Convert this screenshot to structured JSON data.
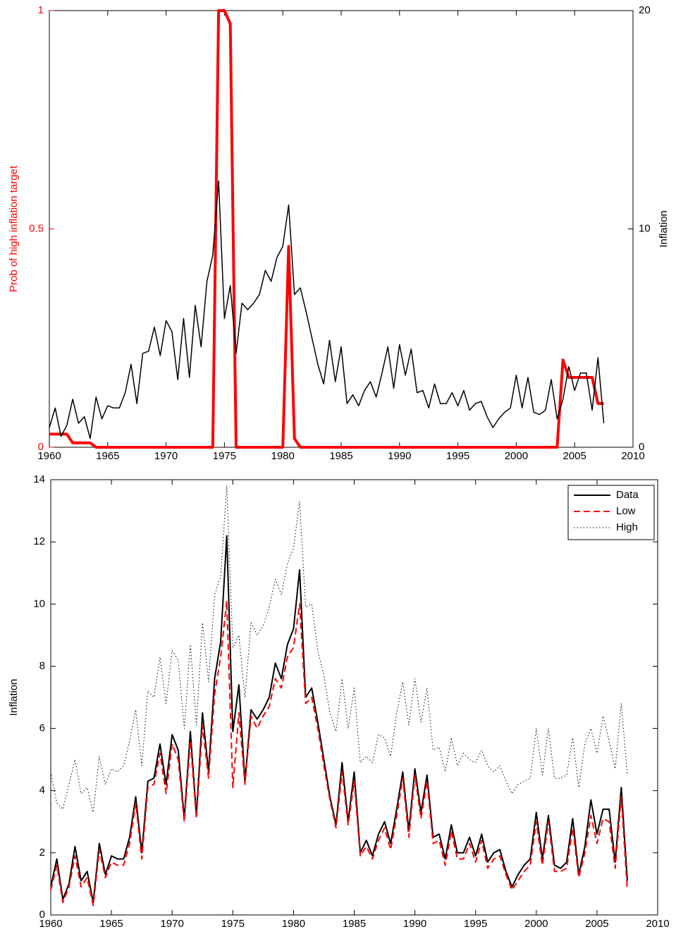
{
  "chart_data": [
    {
      "type": "line",
      "ylabel": "Prob of high inflation target",
      "ylabel_color": "#ff0000",
      "y2label": "Inflation",
      "x": [
        1960,
        1960.5,
        1961,
        1961.5,
        1962,
        1962.5,
        1963,
        1963.5,
        1964,
        1964.5,
        1965,
        1965.5,
        1966,
        1966.5,
        1967,
        1967.5,
        1968,
        1968.5,
        1969,
        1969.5,
        1970,
        1970.5,
        1971,
        1971.5,
        1972,
        1972.5,
        1973,
        1973.5,
        1974,
        1974.5,
        1975,
        1975.5,
        1976,
        1976.5,
        1977,
        1977.5,
        1978,
        1978.5,
        1979,
        1979.5,
        1980,
        1980.5,
        1981,
        1981.5,
        1982,
        1982.5,
        1983,
        1983.5,
        1984,
        1984.5,
        1985,
        1985.5,
        1986,
        1986.5,
        1987,
        1987.5,
        1988,
        1988.5,
        1989,
        1989.5,
        1990,
        1990.5,
        1991,
        1991.5,
        1992,
        1992.5,
        1993,
        1993.5,
        1994,
        1994.5,
        1995,
        1995.5,
        1996,
        1996.5,
        1997,
        1997.5,
        1998,
        1998.5,
        1999,
        1999.5,
        2000,
        2000.5,
        2001,
        2001.5,
        2002,
        2002.5,
        2003,
        2003.5,
        2004,
        2004.5,
        2005,
        2005.5,
        2006,
        2006.5,
        2007,
        2007.5
      ],
      "series": [
        {
          "color": "#ff0000",
          "line_width": 4,
          "line_style": "solid",
          "axis": "y",
          "values": [
            0.03,
            0.03,
            0.03,
            0.03,
            0.01,
            0.01,
            0.01,
            0.01,
            0,
            0,
            0,
            0,
            0,
            0,
            0,
            0,
            0,
            0,
            0,
            0,
            0,
            0,
            0,
            0,
            0,
            0,
            0,
            0,
            0,
            1,
            1,
            0.97,
            0,
            0,
            0,
            0,
            0,
            0,
            0,
            0,
            0,
            0.46,
            0.02,
            0,
            0,
            0,
            0,
            0,
            0,
            0,
            0,
            0,
            0,
            0,
            0,
            0,
            0,
            0,
            0,
            0,
            0,
            0,
            0,
            0,
            0,
            0,
            0,
            0,
            0,
            0,
            0,
            0,
            0,
            0,
            0,
            0,
            0,
            0,
            0,
            0,
            0,
            0,
            0,
            0,
            0,
            0,
            0,
            0,
            0.2,
            0.16,
            0.16,
            0.16,
            0.16,
            0.16,
            0.1,
            0.1
          ]
        },
        {
          "color": "#000000",
          "line_width": 1.5,
          "line_style": "solid",
          "axis": "y2",
          "values": [
            0.9,
            1.8,
            0.5,
            1.0,
            2.2,
            1.1,
            1.4,
            0.4,
            2.3,
            1.3,
            1.9,
            1.8,
            1.8,
            2.5,
            3.8,
            2.0,
            4.3,
            4.4,
            5.5,
            4.2,
            5.8,
            5.3,
            3.1,
            5.9,
            3.2,
            6.5,
            4.6,
            7.6,
            8.8,
            12.2,
            5.9,
            7.4,
            4.3,
            6.6,
            6.3,
            6.6,
            7.0,
            8.1,
            7.6,
            8.7,
            9.2,
            11.1,
            7.0,
            7.3,
            6.2,
            5.0,
            3.8,
            2.9,
            4.9,
            3.0,
            4.6,
            2.0,
            2.4,
            1.9,
            2.6,
            3.0,
            2.3,
            3.4,
            4.6,
            2.7,
            4.7,
            3.3,
            4.5,
            2.5,
            2.6,
            1.8,
            2.9,
            2.0,
            2.0,
            2.5,
            1.9,
            2.6,
            1.7,
            2.0,
            2.1,
            1.4,
            0.9,
            1.3,
            1.6,
            1.8,
            3.3,
            1.8,
            3.2,
            1.6,
            1.5,
            1.7,
            3.1,
            1.3,
            2.2,
            3.7,
            2.6,
            3.4,
            3.4,
            1.7,
            4.1,
            1.1
          ]
        }
      ],
      "xlim": [
        1960,
        2010
      ],
      "xticks": [
        1960,
        1965,
        1970,
        1975,
        1980,
        1985,
        1990,
        1995,
        2000,
        2005,
        2010
      ],
      "ylim": [
        0,
        1
      ],
      "yticks": [
        0,
        0.5,
        1
      ],
      "ytick_color": "#ff0000",
      "y2lim": [
        0,
        20
      ],
      "y2ticks": [
        0,
        10,
        20
      ]
    },
    {
      "type": "line",
      "ylabel": "Inflation",
      "legend": "upper right",
      "x": [
        1960,
        1960.5,
        1961,
        1961.5,
        1962,
        1962.5,
        1963,
        1963.5,
        1964,
        1964.5,
        1965,
        1965.5,
        1966,
        1966.5,
        1967,
        1967.5,
        1968,
        1968.5,
        1969,
        1969.5,
        1970,
        1970.5,
        1971,
        1971.5,
        1972,
        1972.5,
        1973,
        1973.5,
        1974,
        1974.5,
        1975,
        1975.5,
        1976,
        1976.5,
        1977,
        1977.5,
        1978,
        1978.5,
        1979,
        1979.5,
        1980,
        1980.5,
        1981,
        1981.5,
        1982,
        1982.5,
        1983,
        1983.5,
        1984,
        1984.5,
        1985,
        1985.5,
        1986,
        1986.5,
        1987,
        1987.5,
        1988,
        1988.5,
        1989,
        1989.5,
        1990,
        1990.5,
        1991,
        1991.5,
        1992,
        1992.5,
        1993,
        1993.5,
        1994,
        1994.5,
        1995,
        1995.5,
        1996,
        1996.5,
        1997,
        1997.5,
        1998,
        1998.5,
        1999,
        1999.5,
        2000,
        2000.5,
        2001,
        2001.5,
        2002,
        2002.5,
        2003,
        2003.5,
        2004,
        2004.5,
        2005,
        2005.5,
        2006,
        2006.5,
        2007,
        2007.5
      ],
      "series": [
        {
          "name": "Data",
          "color": "#000000",
          "line_width": 2,
          "line_style": "solid",
          "values": [
            0.9,
            1.8,
            0.5,
            1.0,
            2.2,
            1.1,
            1.4,
            0.4,
            2.3,
            1.3,
            1.9,
            1.8,
            1.8,
            2.5,
            3.8,
            2.0,
            4.3,
            4.4,
            5.5,
            4.2,
            5.8,
            5.3,
            3.1,
            5.9,
            3.2,
            6.5,
            4.6,
            7.6,
            8.8,
            12.2,
            5.9,
            7.4,
            4.3,
            6.6,
            6.3,
            6.6,
            7.0,
            8.1,
            7.6,
            8.7,
            9.2,
            11.1,
            7.0,
            7.3,
            6.2,
            5.0,
            3.8,
            2.9,
            4.9,
            3.0,
            4.6,
            2.0,
            2.4,
            1.9,
            2.6,
            3.0,
            2.3,
            3.4,
            4.6,
            2.7,
            4.7,
            3.3,
            4.5,
            2.5,
            2.6,
            1.8,
            2.9,
            2.0,
            2.0,
            2.5,
            1.9,
            2.6,
            1.7,
            2.0,
            2.1,
            1.4,
            0.9,
            1.3,
            1.6,
            1.8,
            3.3,
            1.8,
            3.2,
            1.6,
            1.5,
            1.7,
            3.1,
            1.3,
            2.2,
            3.7,
            2.6,
            3.4,
            3.4,
            1.7,
            4.1,
            1.1
          ]
        },
        {
          "name": "Low",
          "color": "#ff0000",
          "line_width": 2,
          "line_style": "dashed",
          "values": [
            0.8,
            1.6,
            0.4,
            0.9,
            1.9,
            0.9,
            1.2,
            0.3,
            2.1,
            1.2,
            1.7,
            1.6,
            1.6,
            2.3,
            3.6,
            1.8,
            4.1,
            4.2,
            5.2,
            3.9,
            5.5,
            5.0,
            3.0,
            5.6,
            3.1,
            6.1,
            4.4,
            7.1,
            8.3,
            10.1,
            4.1,
            6.5,
            4.2,
            6.4,
            6.0,
            6.4,
            6.7,
            7.6,
            7.3,
            8.3,
            8.6,
            10.0,
            6.8,
            7.0,
            6.0,
            4.8,
            3.7,
            2.8,
            4.6,
            2.9,
            4.3,
            1.9,
            2.2,
            1.8,
            2.4,
            2.8,
            2.1,
            3.2,
            4.4,
            2.5,
            4.5,
            3.1,
            4.3,
            2.3,
            2.4,
            1.6,
            2.7,
            1.8,
            1.8,
            2.3,
            1.7,
            2.4,
            1.5,
            1.8,
            1.9,
            1.3,
            0.8,
            1.1,
            1.4,
            1.6,
            3.0,
            1.6,
            3.0,
            1.4,
            1.4,
            1.5,
            2.8,
            1.2,
            2.0,
            3.2,
            2.3,
            3.1,
            3.0,
            1.5,
            3.8,
            0.8
          ]
        },
        {
          "name": "High",
          "color": "#000000",
          "line_width": 1,
          "line_style": "dotted",
          "values": [
            4.6,
            3.6,
            3.4,
            4.2,
            5.0,
            3.9,
            4.1,
            3.3,
            5.1,
            4.2,
            4.7,
            4.6,
            4.8,
            5.6,
            6.6,
            4.8,
            7.2,
            7.0,
            8.3,
            6.8,
            8.5,
            8.2,
            6.0,
            8.7,
            6.1,
            9.4,
            7.5,
            10.3,
            10.9,
            13.8,
            8.6,
            9.0,
            7.0,
            9.4,
            9.0,
            9.3,
            9.9,
            10.8,
            10.3,
            11.3,
            11.8,
            13.3,
            9.9,
            10.0,
            8.5,
            7.7,
            6.5,
            5.9,
            7.6,
            6.0,
            7.3,
            4.9,
            5.1,
            4.9,
            5.8,
            5.7,
            5.1,
            6.5,
            7.5,
            6.1,
            7.6,
            6.2,
            7.3,
            5.3,
            5.4,
            4.6,
            5.7,
            4.8,
            5.2,
            5.0,
            4.9,
            5.3,
            4.8,
            4.6,
            4.8,
            4.3,
            3.9,
            4.2,
            4.3,
            4.4,
            6.0,
            4.5,
            6.0,
            4.4,
            4.4,
            4.5,
            5.7,
            4.1,
            5.5,
            6.0,
            5.2,
            6.4,
            5.6,
            4.7,
            6.8,
            4.5
          ]
        }
      ],
      "xlim": [
        1960,
        2010
      ],
      "xticks": [
        1960,
        1965,
        1970,
        1975,
        1980,
        1985,
        1990,
        1995,
        2000,
        2005,
        2010
      ],
      "ylim": [
        0,
        14
      ],
      "yticks": [
        0,
        2,
        4,
        6,
        8,
        10,
        12,
        14
      ]
    }
  ]
}
